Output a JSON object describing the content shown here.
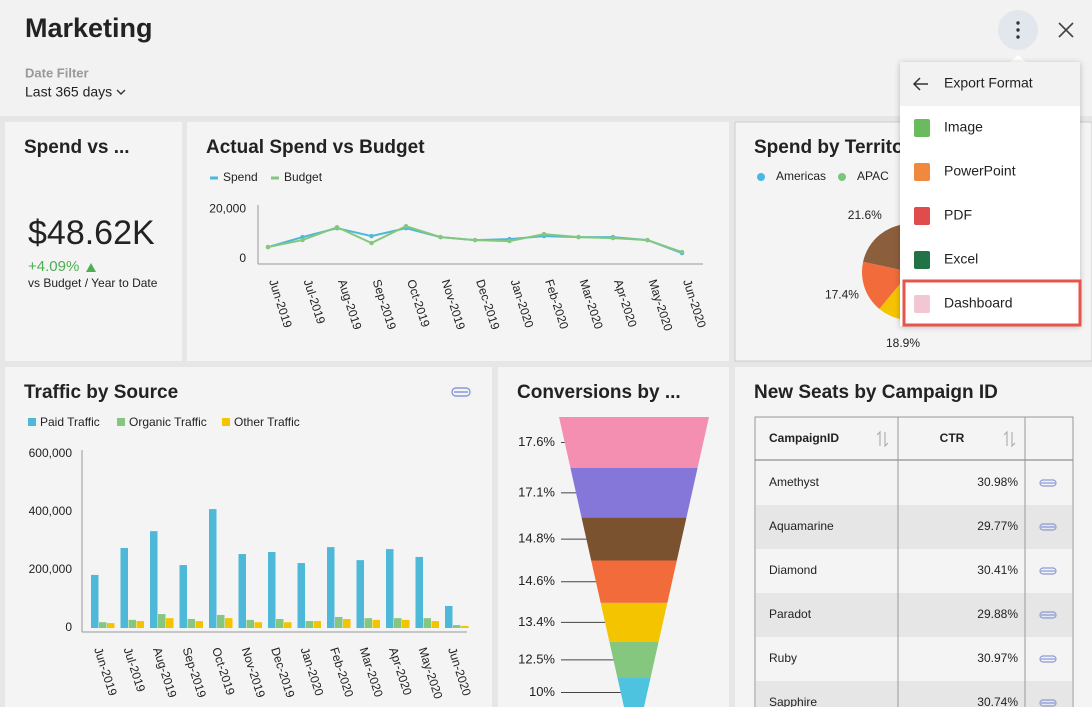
{
  "header": {
    "title": "Marketing",
    "filter_label": "Date Filter",
    "filter_value": "Last 365 days"
  },
  "kpi": {
    "title": "Spend vs ...",
    "value": "$48.62K",
    "change": "+4.09%",
    "caption": "vs Budget / Year to Date"
  },
  "chart_data": [
    {
      "type": "line",
      "title": "Actual Spend vs Budget",
      "categories": [
        "Jun-2019",
        "Jul-2019",
        "Aug-2019",
        "Sep-2019",
        "Oct-2019",
        "Nov-2019",
        "Dec-2019",
        "Jan-2020",
        "Feb-2020",
        "Mar-2020",
        "Apr-2020",
        "May-2020",
        "Jun-2020"
      ],
      "series": [
        {
          "name": "Spend",
          "color": "#4db8d8",
          "values": [
            4800,
            8800,
            12400,
            9200,
            12400,
            8800,
            7600,
            8000,
            9200,
            8800,
            8800,
            7600,
            2400
          ]
        },
        {
          "name": "Budget",
          "color": "#85c77e",
          "values": [
            4800,
            7600,
            12800,
            6400,
            13200,
            8800,
            7600,
            7200,
            10000,
            8800,
            8400,
            7600,
            2800
          ]
        }
      ],
      "ylim": [
        0,
        21500
      ],
      "yticks": [
        0,
        {
          "value": 20000,
          "label": "20,000"
        }
      ]
    },
    {
      "type": "pie",
      "title": "Spend by Territo",
      "legend": [
        {
          "name": "Americas",
          "color": "#4ab8e0"
        },
        {
          "name": "APAC",
          "color": "#7bc67e"
        }
      ],
      "values": [
        21.6,
        17.4,
        18.9
      ],
      "value_labels": [
        "21.6%",
        "17.4%",
        "18.9%"
      ],
      "colors": [
        "#8b5e3c",
        "#f26b3a",
        "#f5c400"
      ]
    },
    {
      "type": "bar",
      "title": "Traffic by Source",
      "categories": [
        "Jun-2019",
        "Jul-2019",
        "Aug-2019",
        "Sep-2019",
        "Oct-2019",
        "Nov-2019",
        "Dec-2019",
        "Jan-2020",
        "Feb-2020",
        "Mar-2020",
        "Apr-2020",
        "May-2020",
        "Jun-2020"
      ],
      "series": [
        {
          "name": "Paid Traffic",
          "color": "#4db8d8",
          "values": [
            183000,
            276000,
            334000,
            217000,
            410000,
            255000,
            262000,
            224000,
            279000,
            234000,
            272000,
            245000,
            76000
          ]
        },
        {
          "name": "Organic Traffic",
          "color": "#85c77e",
          "values": [
            20000,
            28000,
            48000,
            31000,
            45000,
            28000,
            31000,
            24000,
            38000,
            34000,
            34000,
            34000,
            10000
          ]
        },
        {
          "name": "Other Traffic",
          "color": "#f5c400",
          "values": [
            17000,
            24000,
            34000,
            24000,
            34000,
            20000,
            20000,
            24000,
            31000,
            28000,
            28000,
            24000,
            7000
          ]
        }
      ],
      "ylim": [
        0,
        600000
      ],
      "yticks": [
        0,
        {
          "value": 200000,
          "label": "200,000"
        },
        {
          "value": 400000,
          "label": "400,000"
        },
        {
          "value": 600000,
          "label": "600,000"
        }
      ]
    },
    {
      "type": "funnel",
      "title": "Conversions by ...",
      "values": [
        17.6,
        17.1,
        14.8,
        14.6,
        13.4,
        12.5,
        10
      ],
      "value_labels": [
        "17.6%",
        "17.1%",
        "14.8%",
        "14.6%",
        "13.4%",
        "12.5%",
        "10%"
      ],
      "colors": [
        "#f48fb1",
        "#8577d9",
        "#7b5230",
        "#f26b3a",
        "#f5c400",
        "#85c77e",
        "#4dc3e0"
      ]
    }
  ],
  "table": {
    "title": "New Seats by Campaign ID",
    "columns": [
      "CampaignID",
      "CTR"
    ],
    "rows": [
      [
        "Amethyst",
        "30.98%"
      ],
      [
        "Aquamarine",
        "29.77%"
      ],
      [
        "Diamond",
        "30.41%"
      ],
      [
        "Paradot",
        "29.88%"
      ],
      [
        "Ruby",
        "30.97%"
      ],
      [
        "Sapphire",
        "30.74%"
      ]
    ]
  },
  "menu": {
    "header": "Export Format",
    "items": [
      "Image",
      "PowerPoint",
      "PDF",
      "Excel",
      "Dashboard"
    ]
  }
}
